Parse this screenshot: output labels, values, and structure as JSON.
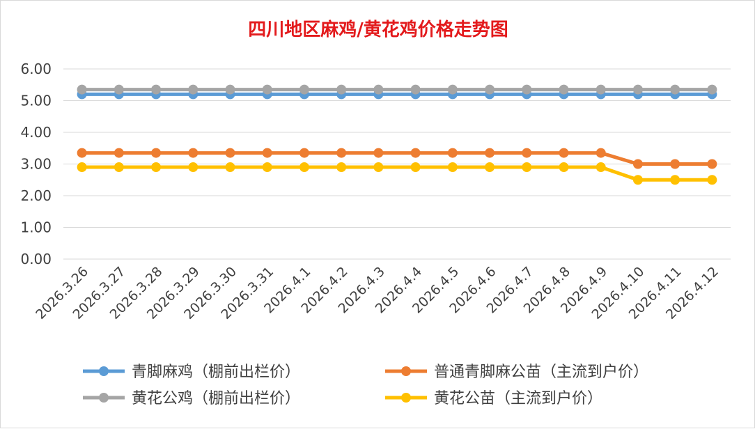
{
  "chart_data": {
    "type": "line",
    "title": "四川地区麻鸡/黄花鸡价格走势图",
    "categories": [
      "2026.3.26",
      "2026.3.27",
      "2026.3.28",
      "2026.3.29",
      "2026.3.30",
      "2026.3.31",
      "2026.4.1",
      "2026.4.2",
      "2026.4.3",
      "2026.4.4",
      "2026.4.5",
      "2026.4.6",
      "2026.4.7",
      "2026.4.8",
      "2026.4.9",
      "2026.4.10",
      "2026.4.11",
      "2026.4.12"
    ],
    "y_ticks": [
      "0.00",
      "1.00",
      "2.00",
      "3.00",
      "4.00",
      "5.00",
      "6.00"
    ],
    "ylim": [
      0,
      6
    ],
    "grid": true,
    "legend_position": "bottom",
    "series": [
      {
        "name": "青脚麻鸡（棚前出栏价）",
        "color": "#5b9bd5",
        "values": [
          5.2,
          5.2,
          5.2,
          5.2,
          5.2,
          5.2,
          5.2,
          5.2,
          5.2,
          5.2,
          5.2,
          5.2,
          5.2,
          5.2,
          5.2,
          5.2,
          5.2,
          5.2
        ]
      },
      {
        "name": "普通青脚麻公苗（主流到户价）",
        "color": "#ed7d31",
        "values": [
          3.35,
          3.35,
          3.35,
          3.35,
          3.35,
          3.35,
          3.35,
          3.35,
          3.35,
          3.35,
          3.35,
          3.35,
          3.35,
          3.35,
          3.35,
          3.0,
          3.0,
          3.0
        ]
      },
      {
        "name": "黄花公鸡（棚前出栏价）",
        "color": "#a5a5a5",
        "values": [
          5.35,
          5.35,
          5.35,
          5.35,
          5.35,
          5.35,
          5.35,
          5.35,
          5.35,
          5.35,
          5.35,
          5.35,
          5.35,
          5.35,
          5.35,
          5.35,
          5.35,
          5.35
        ]
      },
      {
        "name": "黄花公苗（主流到户价）",
        "color": "#ffc000",
        "values": [
          2.9,
          2.9,
          2.9,
          2.9,
          2.9,
          2.9,
          2.9,
          2.9,
          2.9,
          2.9,
          2.9,
          2.9,
          2.9,
          2.9,
          2.9,
          2.5,
          2.5,
          2.5
        ]
      }
    ]
  }
}
